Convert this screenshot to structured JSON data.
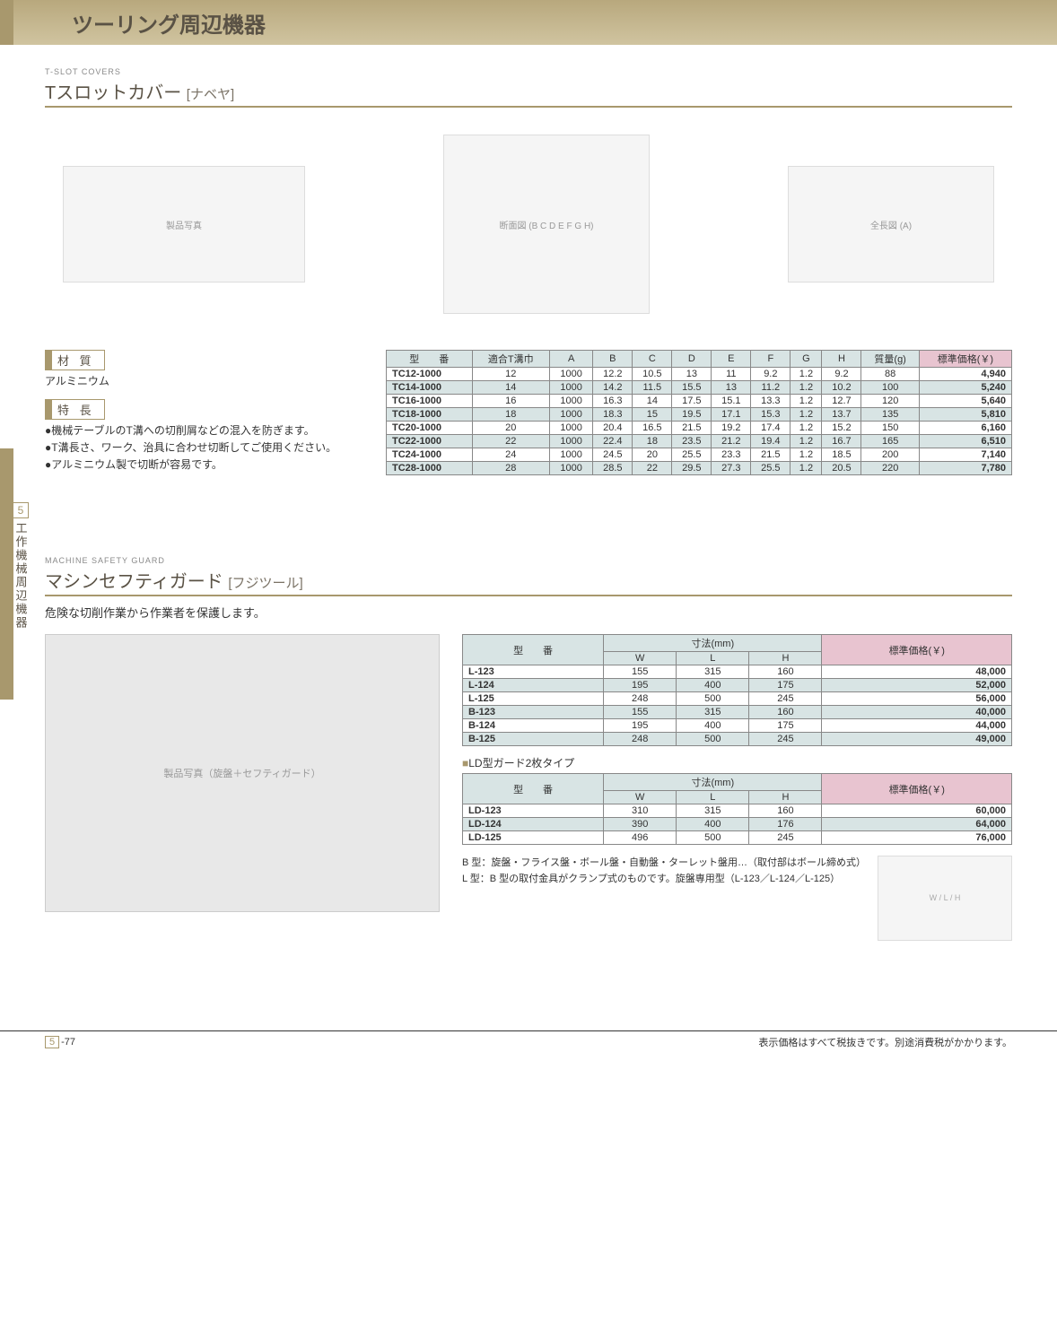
{
  "header": {
    "title": "ツーリング周辺機器"
  },
  "sideTab": {
    "num": "5",
    "text": "工作機械周辺機器"
  },
  "section1": {
    "english": "T-SLOT COVERS",
    "title": "Tスロットカバー",
    "maker": "[ナベヤ]",
    "materialLabel": "材 質",
    "material": "アルミニウム",
    "featureLabel": "特 長",
    "features": [
      "機械テーブルのT溝への切削屑などの混入を防ぎます。",
      "T溝長さ、ワーク、治具に合わせ切断してご使用ください。",
      "アルミニウム製で切断が容易です。"
    ],
    "table": {
      "headers": [
        "型　　番",
        "適合T溝巾",
        "A",
        "B",
        "C",
        "D",
        "E",
        "F",
        "G",
        "H",
        "質量(g)",
        "標準価格(￥)"
      ],
      "rows": [
        [
          "TC12-1000",
          "12",
          "1000",
          "12.2",
          "10.5",
          "13",
          "11",
          "9.2",
          "1.2",
          "9.2",
          "88",
          "4,940"
        ],
        [
          "TC14-1000",
          "14",
          "1000",
          "14.2",
          "11.5",
          "15.5",
          "13",
          "11.2",
          "1.2",
          "10.2",
          "100",
          "5,240"
        ],
        [
          "TC16-1000",
          "16",
          "1000",
          "16.3",
          "14",
          "17.5",
          "15.1",
          "13.3",
          "1.2",
          "12.7",
          "120",
          "5,640"
        ],
        [
          "TC18-1000",
          "18",
          "1000",
          "18.3",
          "15",
          "19.5",
          "17.1",
          "15.3",
          "1.2",
          "13.7",
          "135",
          "5,810"
        ],
        [
          "TC20-1000",
          "20",
          "1000",
          "20.4",
          "16.5",
          "21.5",
          "19.2",
          "17.4",
          "1.2",
          "15.2",
          "150",
          "6,160"
        ],
        [
          "TC22-1000",
          "22",
          "1000",
          "22.4",
          "18",
          "23.5",
          "21.2",
          "19.4",
          "1.2",
          "16.7",
          "165",
          "6,510"
        ],
        [
          "TC24-1000",
          "24",
          "1000",
          "24.5",
          "20",
          "25.5",
          "23.3",
          "21.5",
          "1.2",
          "18.5",
          "200",
          "7,140"
        ],
        [
          "TC28-1000",
          "28",
          "1000",
          "28.5",
          "22",
          "29.5",
          "27.3",
          "25.5",
          "1.2",
          "20.5",
          "220",
          "7,780"
        ]
      ]
    }
  },
  "section2": {
    "english": "MACHINE SAFETY GUARD",
    "title": "マシンセフティガード",
    "maker": "[フジツール]",
    "desc": "危険な切削作業から作業者を保護します。",
    "table1": {
      "headers": {
        "model": "型　　番",
        "dim": "寸法(mm)",
        "w": "W",
        "l": "L",
        "h": "H",
        "price": "標準価格(￥)"
      },
      "rows": [
        [
          "L-123",
          "155",
          "315",
          "160",
          "48,000"
        ],
        [
          "L-124",
          "195",
          "400",
          "175",
          "52,000"
        ],
        [
          "L-125",
          "248",
          "500",
          "245",
          "56,000"
        ],
        [
          "B-123",
          "155",
          "315",
          "160",
          "40,000"
        ],
        [
          "B-124",
          "195",
          "400",
          "175",
          "44,000"
        ],
        [
          "B-125",
          "248",
          "500",
          "245",
          "49,000"
        ]
      ]
    },
    "subtypeLabel": "LD型ガード2枚タイプ",
    "table2": {
      "rows": [
        [
          "LD-123",
          "310",
          "315",
          "160",
          "60,000"
        ],
        [
          "LD-124",
          "390",
          "400",
          "176",
          "64,000"
        ],
        [
          "LD-125",
          "496",
          "500",
          "245",
          "76,000"
        ]
      ]
    },
    "notes": [
      "B 型：旋盤・フライス盤・ボール盤・自動盤・ターレット盤用…（取付部はボール締め式）",
      "L 型：B 型の取付金具がクランプ式のものです。旋盤専用型（L-123／L-124／L-125）"
    ]
  },
  "footer": {
    "pageSection": "5",
    "pageNum": "-77",
    "disclaimer": "表示価格はすべて税抜きです。別途消費税がかかります。"
  },
  "colors": {
    "accent": "#a8986d",
    "headerTh": "#d8e4e4",
    "priceTh": "#e8c4d0",
    "altRow": "#d8e4e4"
  }
}
